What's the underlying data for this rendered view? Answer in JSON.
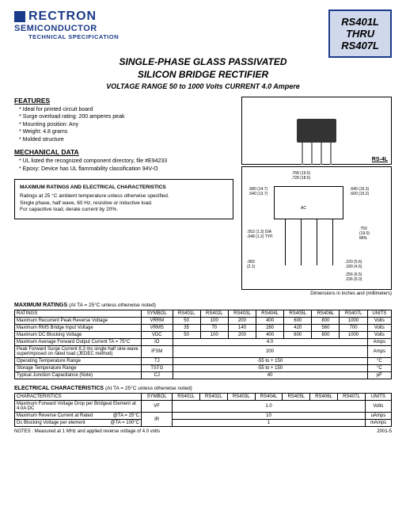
{
  "brand": {
    "name": "RECTRON",
    "sub": "SEMICONDUCTOR",
    "spec": "TECHNICAL SPECIFICATION"
  },
  "partbox": {
    "line1": "RS401L",
    "line2": "THRU",
    "line3": "RS407L"
  },
  "titles": {
    "t1": "SINGLE-PHASE GLASS PASSIVATED",
    "t2": "SILICON BRIDGE RECTIFIER",
    "sub": "VOLTAGE RANGE  50 to 1000 Volts   CURRENT 4.0 Ampere"
  },
  "features": {
    "h": "FEATURES",
    "items": [
      "* Ideal for printed circuit board",
      "* Surge overload rating: 200 amperes peak",
      "* Mounting position: Any",
      "* Weight:  4.8 grams",
      "* Molded structure"
    ]
  },
  "mech": {
    "h": "MECHANICAL DATA",
    "items": [
      "* UL listed the recognized component directory, file #E94233",
      "* Epoxy: Device has UL flammability classification 94V-O"
    ]
  },
  "charbox": {
    "h": "MAXIMUM RATINGS AND ELECTRICAL CHARACTERISTICS",
    "lines": [
      "Ratings at 25 °C ambient temperature unless otherwise specified.",
      "Single phase, half wave, 60 Hz, resistive or inductive load.",
      "For capacitive load, derate current by 20%."
    ]
  },
  "pkg_label": "RS-4L",
  "dim_caption": "Dimensions in inches and (millimeters)",
  "dims": {
    "d1": ".768 (19.5)",
    "d1b": ".728 (18.5)",
    "d2": ".580 (14.7)",
    "d2b": ".540 (13.7)",
    "d3": ".640 (16.3)",
    "d3b": ".600 (15.2)",
    "d4": ".052 (1.3) DIA",
    "d4b": ".048 (1.2) TYP.",
    "d5": ".750",
    "d5b": "(19.0)",
    "d5c": "MIN.",
    "d6": ".083",
    "d6b": "(2.1)",
    "d7": ".220 (5.6)",
    "d7b": ".180 (4.6)",
    "d8": ".256 (6.5)",
    "d8b": ".236 (6.0)",
    "ac": "AC"
  },
  "table1": {
    "title": "MAXIMUM RATINGS",
    "note": "(At TA = 25°C unless otherwise noted)",
    "headers": [
      "RATINGS",
      "SYMBOL",
      "RS401L",
      "RS402L",
      "RS403L",
      "RS404L",
      "RS405L",
      "RS406L",
      "RS407L",
      "UNITS"
    ],
    "rows": [
      [
        "Maximum Recurrent Peak Reverse Voltage",
        "VRRM",
        "50",
        "100",
        "200",
        "400",
        "600",
        "800",
        "1000",
        "Volts"
      ],
      [
        "Maximum RMS Bridge Input Voltage",
        "VRMS",
        "35",
        "70",
        "140",
        "280",
        "420",
        "560",
        "700",
        "Volts"
      ],
      [
        "Maximum DC Blocking Voltage",
        "VDC",
        "50",
        "100",
        "200",
        "400",
        "600",
        "800",
        "1000",
        "Volts"
      ],
      [
        "Maximum Average Forward Output Current TA = 75°C",
        "IO",
        {
          "span": 7,
          "v": "4.0"
        },
        "Amps"
      ],
      [
        "Peak Forward Surge Current 8.3 ms single half sine-wave superimposed on rated load (JEDEC method)",
        "IFSM",
        {
          "span": 7,
          "v": "200"
        },
        "Amps"
      ],
      [
        "Operating Temperature Range",
        "TJ",
        {
          "span": 7,
          "v": "-55 to + 150"
        },
        "°C"
      ],
      [
        "Storage Temperature Range",
        "TSTG",
        {
          "span": 7,
          "v": "-55 to + 150"
        },
        "°C"
      ],
      [
        "Typical Junction Capacitance (Note)",
        "CJ",
        {
          "span": 7,
          "v": "40"
        },
        "pF"
      ]
    ]
  },
  "table2": {
    "title": "ELECTRICAL CHARACTERISTICS",
    "note": "(At TA = 25°C unless otherwise noted)",
    "headers": [
      "CHARACTERISTICS",
      "SYMBOL",
      "RS401L",
      "RS402L",
      "RS403L",
      "RS404L",
      "RS405L",
      "RS406L",
      "RS407L",
      "UNITS"
    ],
    "rows": [
      {
        "c": "Maximum Forward Voltage Drop per Bridgeat Element at 4.0A DC",
        "sym": "VF",
        "val": "1.0",
        "unit": "Volts",
        "sub": null
      },
      {
        "c": "Maximum Reverse Current at Rated",
        "sym": "IR",
        "val": "10",
        "unit": "uAmps",
        "sub": "@TA = 25°C"
      },
      {
        "c": "Dc Blocking Voltage per element",
        "sym": "",
        "val": "1",
        "unit": "mAmps",
        "sub": "@TA = 100°C"
      }
    ]
  },
  "notes": {
    "left": "NOTES :   Measured at 1 MHz and applied reverse voltage of 4.0 volts",
    "right": "2001-5"
  }
}
